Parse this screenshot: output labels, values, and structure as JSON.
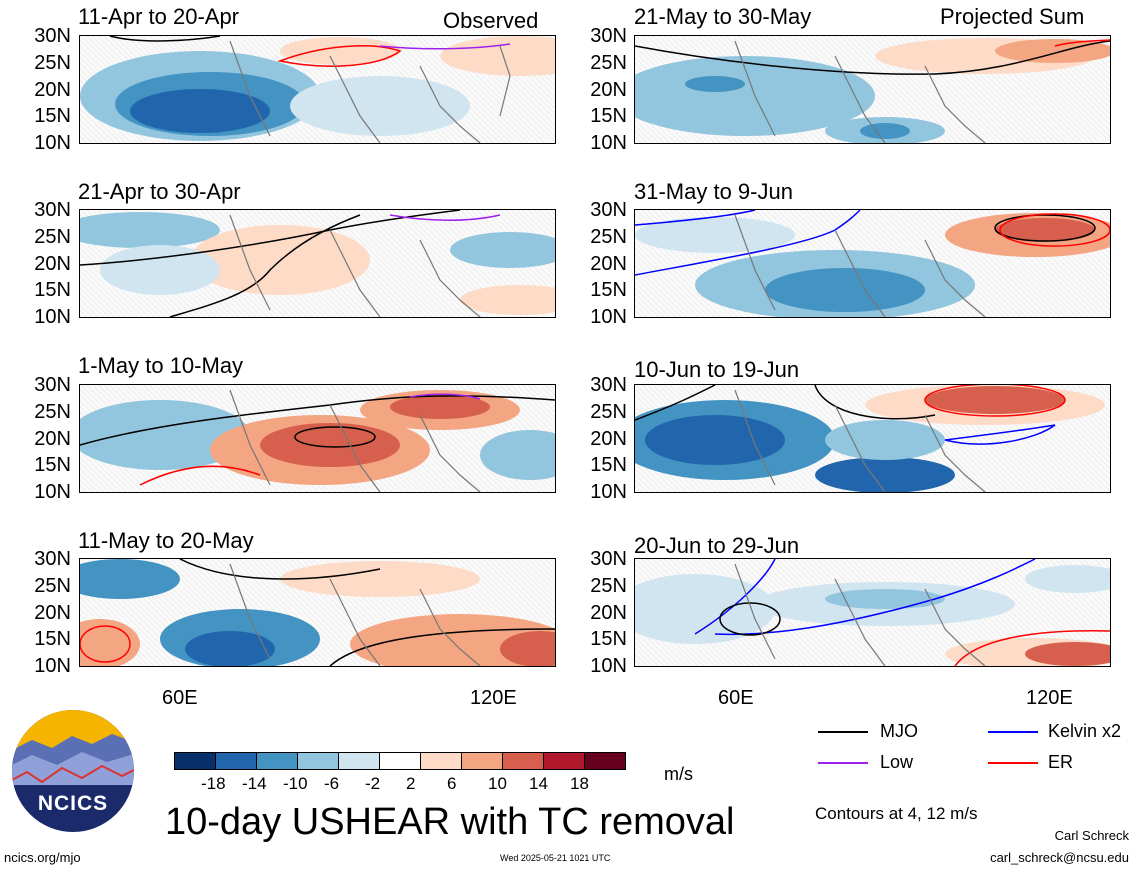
{
  "panels": [
    {
      "title": "11-Apr to 20-Apr"
    },
    {
      "title": "21-Apr to 30-Apr"
    },
    {
      "title": "1-May to 10-May"
    },
    {
      "title": "11-May to 20-May"
    },
    {
      "title": "21-May to 30-May"
    },
    {
      "title": "31-May to 9-Jun"
    },
    {
      "title": "10-Jun to 19-Jun"
    },
    {
      "title": "20-Jun to 29-Jun"
    }
  ],
  "column_labels": {
    "left": "Observed",
    "right": "Projected Sum"
  },
  "lat_ticks": [
    "30N",
    "25N",
    "20N",
    "15N",
    "10N"
  ],
  "lon_ticks": [
    "60E",
    "120E"
  ],
  "colorbar": {
    "colors": [
      "#08306b",
      "#2166ac",
      "#4393c3",
      "#92c5de",
      "#d1e5f0",
      "#ffffff",
      "#fddbc7",
      "#f4a582",
      "#d6604d",
      "#b2182b",
      "#67001f"
    ],
    "labels": [
      "-18",
      "-14",
      "-10",
      "-6",
      "-2",
      "2",
      "6",
      "10",
      "14",
      "18"
    ],
    "units": "m/s"
  },
  "legend": [
    {
      "label": "MJO",
      "color": "#000000"
    },
    {
      "label": "Kelvin x2",
      "color": "#0000ff"
    },
    {
      "label": "Low",
      "color": "#a020f0"
    },
    {
      "label": "ER",
      "color": "#ff0000"
    }
  ],
  "contour_note": "Contours at 4, 12 m/s",
  "main_title": "10-day USHEAR with TC removal",
  "author": "Carl Schreck",
  "email": "carl_schreck@ncsu.edu",
  "site": "ncics.org/mjo",
  "timestamp": "Wed 2025-05-21 1021 UTC",
  "logo_text": "NCICS"
}
